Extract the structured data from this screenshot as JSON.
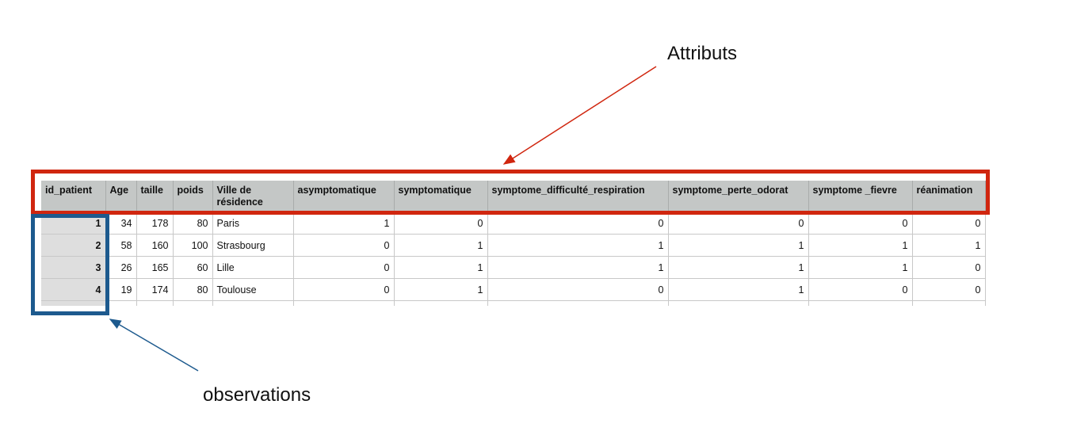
{
  "annotations": {
    "attributes_label": "Attributs",
    "observations_label": "observations",
    "attributes_color": "#d0260f",
    "observations_color": "#1d5a8e"
  },
  "table": {
    "columns": [
      "id_patient",
      "Age",
      "taille",
      "poids",
      "Ville de résidence",
      "asymptomatique",
      "symptomatique",
      "symptome_difficulté_respiration",
      "symptome_perte_odorat",
      "symptome _fievre",
      "réanimation"
    ],
    "rows": [
      [
        "1",
        "34",
        "178",
        "80",
        "Paris",
        "1",
        "0",
        "0",
        "0",
        "0",
        "0"
      ],
      [
        "2",
        "58",
        "160",
        "100",
        "Strasbourg",
        "0",
        "1",
        "1",
        "1",
        "1",
        "1"
      ],
      [
        "3",
        "26",
        "165",
        "60",
        "Lille",
        "0",
        "1",
        "1",
        "1",
        "1",
        "0"
      ],
      [
        "4",
        "19",
        "174",
        "80",
        "Toulouse",
        "0",
        "1",
        "0",
        "1",
        "0",
        "0"
      ]
    ]
  }
}
